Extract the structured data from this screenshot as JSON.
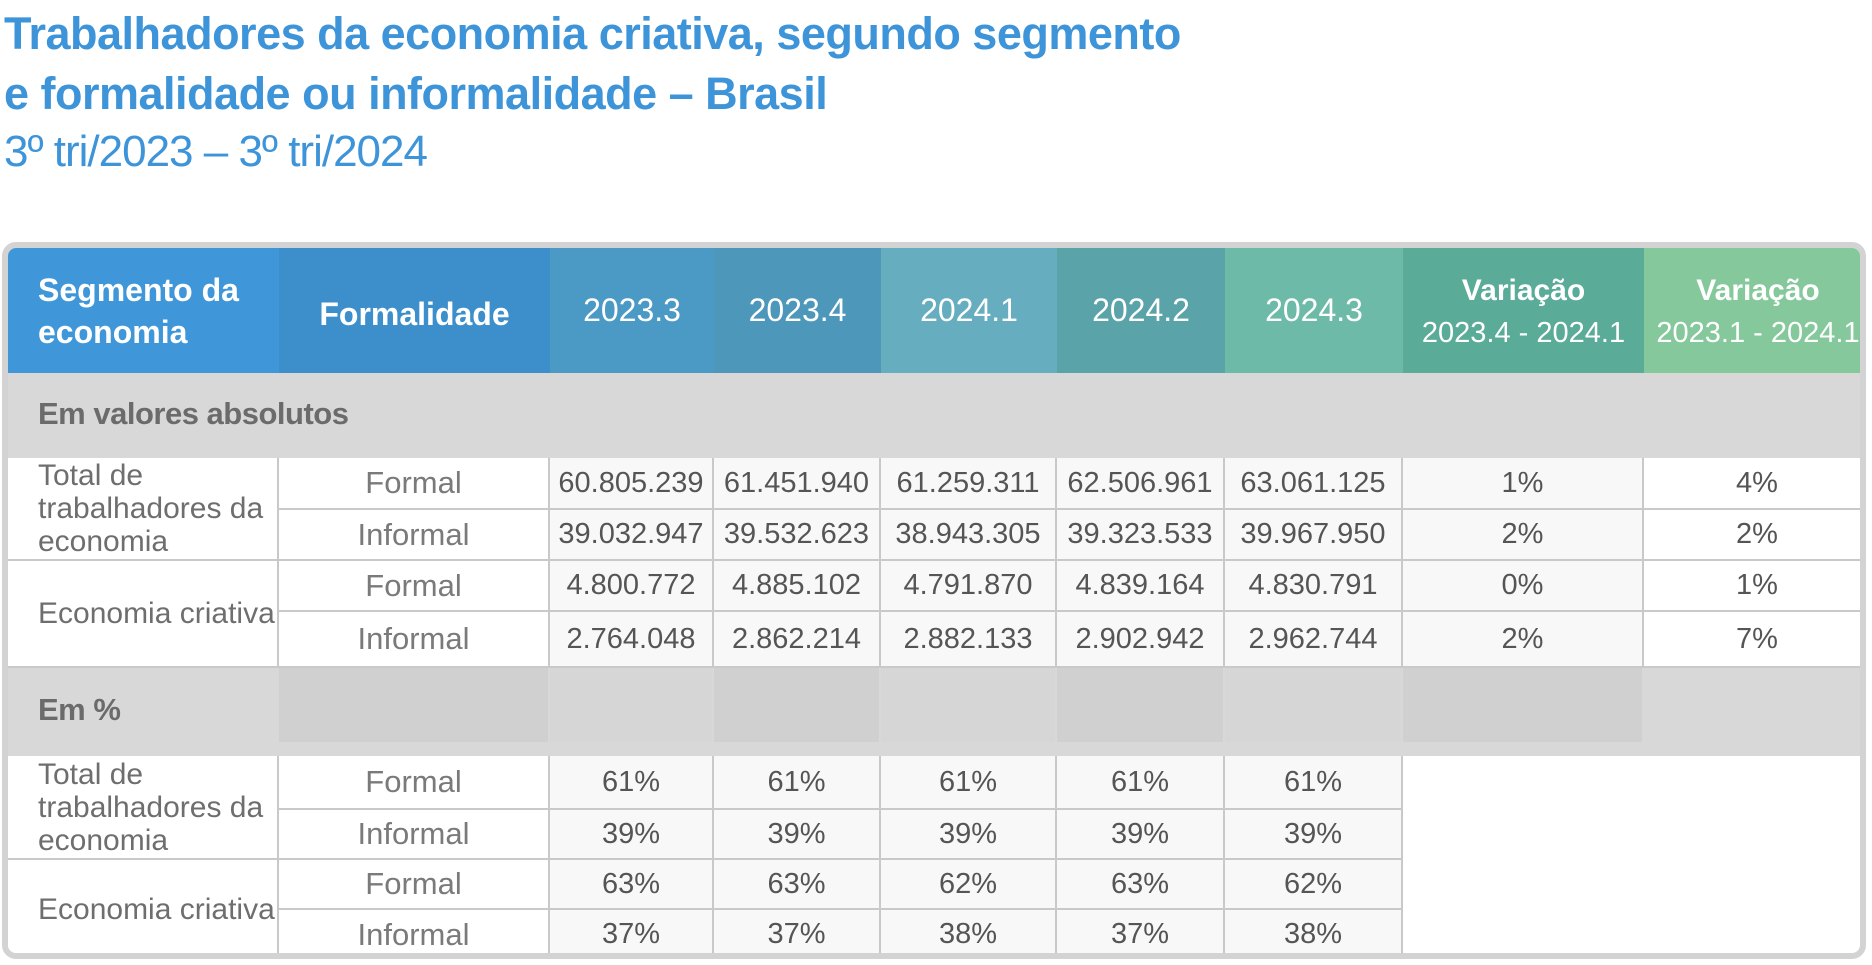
{
  "title": {
    "line1": "Trabalhadores da economia criativa, segundo segmento",
    "line2": "e formalidade ou informalidade – Brasil",
    "subtitle": "3º tri/2023 – 3º tri/2024"
  },
  "header": {
    "segment": "Segmento da economia",
    "formality": "Formalidade",
    "periods": [
      "2023.3",
      "2023.4",
      "2024.1",
      "2024.2",
      "2024.3"
    ],
    "variation1_label": "Variação",
    "variation1_range": "2023.4 - 2024.1",
    "variation2_label": "Variação",
    "variation2_range": "2023.1 - 2024.1",
    "colors": [
      "#3f97d9",
      "#3d8fcb",
      "#4b9ac6",
      "#4d97bb",
      "#66adc0",
      "#5aa3a9",
      "#6ebaa8",
      "#5aab98",
      "#85c89b"
    ]
  },
  "sections": [
    {
      "label": "Em valores absolutos",
      "groups": [
        {
          "segment": "Total de trabalhadores da economia",
          "rows": [
            {
              "formality": "Formal",
              "values": [
                "60.805.239",
                "61.451.940",
                "61.259.311",
                "62.506.961",
                "63.061.125"
              ],
              "var1": "1%",
              "var2": "4%"
            },
            {
              "formality": "Informal",
              "values": [
                "39.032.947",
                "39.532.623",
                "38.943.305",
                "39.323.533",
                "39.967.950"
              ],
              "var1": "2%",
              "var2": "2%"
            }
          ]
        },
        {
          "segment": "Economia criativa",
          "rows": [
            {
              "formality": "Formal",
              "values": [
                "4.800.772",
                "4.885.102",
                "4.791.870",
                "4.839.164",
                "4.830.791"
              ],
              "var1": "0%",
              "var2": "1%"
            },
            {
              "formality": "Informal",
              "values": [
                "2.764.048",
                "2.862.214",
                "2.882.133",
                "2.902.942",
                "2.962.744"
              ],
              "var1": "2%",
              "var2": "7%"
            }
          ]
        }
      ]
    },
    {
      "label": "Em %",
      "groups": [
        {
          "segment": "Total de trabalhadores da economia",
          "rows": [
            {
              "formality": "Formal",
              "values": [
                "61%",
                "61%",
                "61%",
                "61%",
                "61%"
              ]
            },
            {
              "formality": "Informal",
              "values": [
                "39%",
                "39%",
                "39%",
                "39%",
                "39%"
              ]
            }
          ]
        },
        {
          "segment": "Economia criativa",
          "rows": [
            {
              "formality": "Formal",
              "values": [
                "63%",
                "63%",
                "62%",
                "63%",
                "62%"
              ]
            },
            {
              "formality": "Informal",
              "values": [
                "37%",
                "37%",
                "38%",
                "37%",
                "38%"
              ]
            }
          ]
        }
      ]
    }
  ]
}
